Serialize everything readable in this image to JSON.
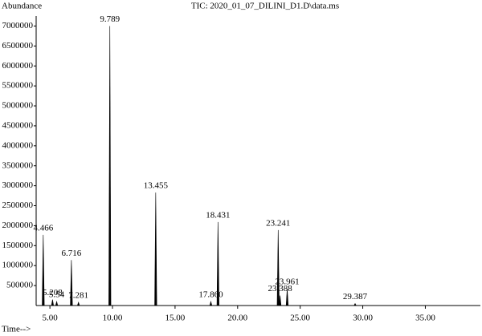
{
  "chart_data": {
    "type": "peaks",
    "title": "TIC: 2020_01_07_DILINI_D1.D\\data.ms",
    "ylabel": "Abundance",
    "xlabel": "Time-->",
    "color": "#000000",
    "x": [
      4.466,
      5.208,
      5.54,
      6.716,
      7.281,
      9.789,
      13.455,
      17.86,
      18.431,
      23.241,
      23.388,
      23.961,
      29.387
    ],
    "labels": [
      "4.466",
      "5.208",
      "5.54",
      "6.716",
      "7.281",
      "9.789",
      "13.455",
      "17.860",
      "18.431",
      "23.241",
      "23.388",
      "23.961",
      "29.387"
    ],
    "values": [
      1770000,
      150000,
      100000,
      1140000,
      80000,
      7000000,
      2830000,
      100000,
      2090000,
      1890000,
      250000,
      420000,
      50000
    ],
    "xlim": [
      3.9,
      39.4
    ],
    "ylim": [
      0,
      7250000
    ],
    "xticks": [
      {
        "value": 5,
        "label": "5.00"
      },
      {
        "value": 10,
        "label": "10.00"
      },
      {
        "value": 15,
        "label": "15.00"
      },
      {
        "value": 20,
        "label": "20.00"
      },
      {
        "value": 25,
        "label": "25.00"
      },
      {
        "value": 30,
        "label": "30.00"
      },
      {
        "value": 35,
        "label": "35.00"
      }
    ],
    "yticks": [
      500000,
      1000000,
      1500000,
      2000000,
      2500000,
      3000000,
      3500000,
      4000000,
      4500000,
      5000000,
      5500000,
      6000000,
      6500000,
      7000000
    ]
  }
}
